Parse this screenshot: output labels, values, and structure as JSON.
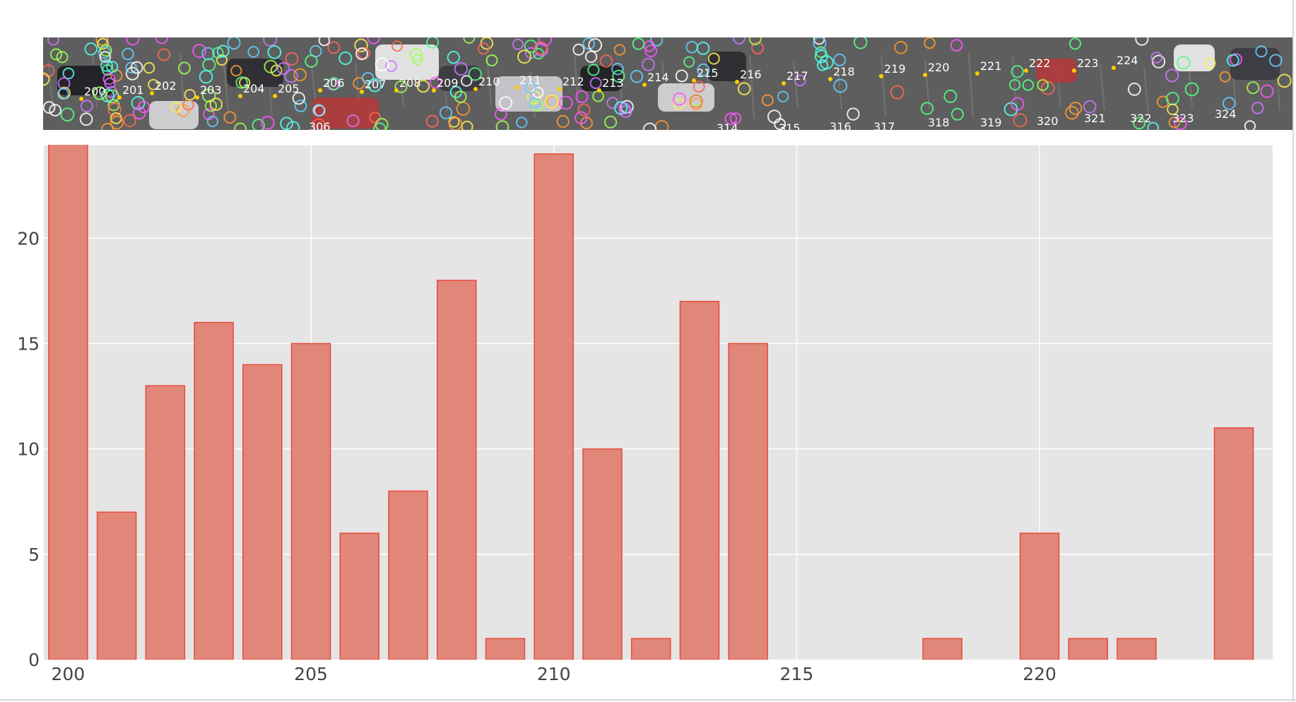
{
  "colors": {
    "bar_fill": "#e0877a",
    "bar_stroke": "#e8493a",
    "plot_bg": "#e5e5e5",
    "grid": "#ffffff",
    "aerial_bg": "#5d5e5d"
  },
  "aerial_strip": {
    "top_row_labels": [
      "200",
      "201",
      "202",
      "203",
      "204",
      "205",
      "206",
      "207",
      "208",
      "209",
      "210",
      "211",
      "212",
      "213",
      "214",
      "215",
      "216",
      "217",
      "218",
      "219",
      "220",
      "221",
      "222",
      "223",
      "224"
    ],
    "bottom_row_labels": [
      "306",
      "314",
      "315",
      "316",
      "317",
      "318",
      "319",
      "320",
      "321",
      "322",
      "323",
      "324"
    ]
  },
  "chart_data": {
    "type": "bar",
    "title": "",
    "xlabel": "",
    "ylabel": "",
    "x": [
      200,
      201,
      202,
      203,
      204,
      205,
      206,
      207,
      208,
      209,
      210,
      211,
      212,
      213,
      214,
      215,
      216,
      217,
      218,
      219,
      220,
      221,
      222,
      223,
      224
    ],
    "values": [
      25,
      7,
      13,
      16,
      14,
      15,
      6,
      8,
      18,
      1,
      24,
      10,
      1,
      17,
      15,
      0,
      0,
      0,
      1,
      0,
      6,
      1,
      1,
      0,
      11
    ],
    "xlim": [
      199.5,
      224.8
    ],
    "ylim": [
      0,
      24.4
    ],
    "x_ticks": [
      "200",
      "205",
      "210",
      "215",
      "220"
    ],
    "y_ticks": [
      "0",
      "5",
      "10",
      "15",
      "20"
    ],
    "grid": true,
    "legend": "none"
  }
}
